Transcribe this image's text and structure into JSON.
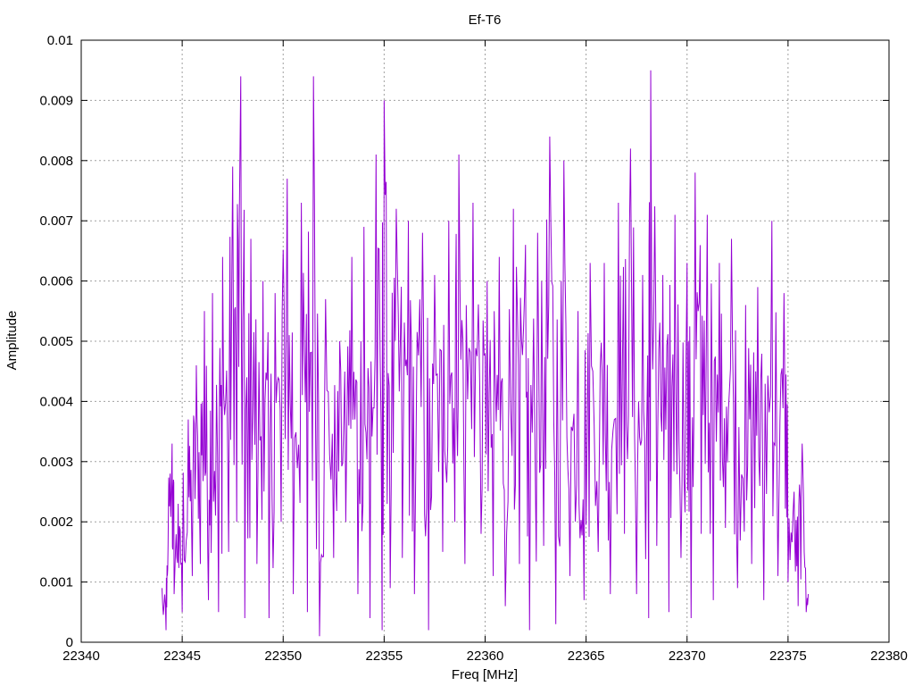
{
  "chart_data": {
    "type": "line",
    "title": "Ef-T6",
    "xlabel": "Freq [MHz]",
    "ylabel": "Amplitude",
    "xlim": [
      22340,
      22380
    ],
    "ylim": [
      0,
      0.01
    ],
    "x_ticks": [
      22340,
      22345,
      22350,
      22355,
      22360,
      22365,
      22370,
      22375,
      22380
    ],
    "x_tick_labels": [
      "22340",
      "22345",
      "22350",
      "22355",
      "22360",
      "22365",
      "22370",
      "22375",
      "22380"
    ],
    "y_ticks": [
      0,
      0.001,
      0.002,
      0.003,
      0.004,
      0.005,
      0.006,
      0.007,
      0.008,
      0.009,
      0.01
    ],
    "y_tick_labels": [
      "0",
      "0.001",
      "0.002",
      "0.003",
      "0.004",
      "0.005",
      "0.006",
      "0.007",
      "0.008",
      "0.009",
      "0.01"
    ],
    "grid": true,
    "legend": "none",
    "series": [
      {
        "color": "#9400d3",
        "x_start": 22344.0,
        "x_end": 22376.0,
        "peaks": [
          [
            22344.0,
            0.0009
          ],
          [
            22344.2,
            0.0002
          ],
          [
            22344.3,
            0.0016
          ],
          [
            22344.5,
            0.0033
          ],
          [
            22344.6,
            0.0008
          ],
          [
            22344.8,
            0.0023
          ],
          [
            22345.0,
            0.0005
          ],
          [
            22345.3,
            0.0037
          ],
          [
            22345.5,
            0.0011
          ],
          [
            22345.7,
            0.0046
          ],
          [
            22345.9,
            0.0013
          ],
          [
            22346.1,
            0.0055
          ],
          [
            22346.3,
            0.0007
          ],
          [
            22346.5,
            0.0058
          ],
          [
            22346.8,
            0.0005
          ],
          [
            22347.0,
            0.0064
          ],
          [
            22347.3,
            0.0015
          ],
          [
            22347.5,
            0.0079
          ],
          [
            22347.7,
            0.002
          ],
          [
            22347.9,
            0.0094
          ],
          [
            22348.1,
            0.0004
          ],
          [
            22348.4,
            0.0067
          ],
          [
            22348.7,
            0.0013
          ],
          [
            22349.0,
            0.006
          ],
          [
            22349.3,
            0.0004
          ],
          [
            22349.6,
            0.0058
          ],
          [
            22349.9,
            0.002
          ],
          [
            22350.2,
            0.0077
          ],
          [
            22350.5,
            0.0008
          ],
          [
            22350.9,
            0.0073
          ],
          [
            22351.2,
            0.0005
          ],
          [
            22351.5,
            0.0094
          ],
          [
            22351.8,
            0.0001
          ],
          [
            22352.1,
            0.0057
          ],
          [
            22352.5,
            0.0014
          ],
          [
            22352.8,
            0.005
          ],
          [
            22353.1,
            0.002
          ],
          [
            22353.4,
            0.0064
          ],
          [
            22353.7,
            0.0008
          ],
          [
            22354.0,
            0.0069
          ],
          [
            22354.3,
            0.0004
          ],
          [
            22354.6,
            0.0081
          ],
          [
            22354.9,
            0.0002
          ],
          [
            22355.0,
            0.009
          ],
          [
            22355.3,
            0.0009
          ],
          [
            22355.6,
            0.0072
          ],
          [
            22355.9,
            0.0014
          ],
          [
            22356.2,
            0.007
          ],
          [
            22356.5,
            0.0008
          ],
          [
            22356.9,
            0.0068
          ],
          [
            22357.2,
            0.0002
          ],
          [
            22357.5,
            0.0061
          ],
          [
            22357.9,
            0.0015
          ],
          [
            22358.2,
            0.007
          ],
          [
            22358.5,
            0.002
          ],
          [
            22358.7,
            0.0081
          ],
          [
            22359.0,
            0.0013
          ],
          [
            22359.4,
            0.0073
          ],
          [
            22359.8,
            0.0018
          ],
          [
            22360.1,
            0.006
          ],
          [
            22360.4,
            0.0011
          ],
          [
            22360.7,
            0.0064
          ],
          [
            22361.0,
            0.0006
          ],
          [
            22361.4,
            0.0072
          ],
          [
            22361.7,
            0.0013
          ],
          [
            22362.0,
            0.0066
          ],
          [
            22362.2,
            0.0002
          ],
          [
            22362.6,
            0.0068
          ],
          [
            22362.9,
            0.0016
          ],
          [
            22363.2,
            0.0084
          ],
          [
            22363.5,
            0.0003
          ],
          [
            22363.9,
            0.008
          ],
          [
            22364.2,
            0.0011
          ],
          [
            22364.6,
            0.0055
          ],
          [
            22364.9,
            0.0007
          ],
          [
            22365.2,
            0.0063
          ],
          [
            22365.6,
            0.0015
          ],
          [
            22365.9,
            0.0063
          ],
          [
            22366.2,
            0.0008
          ],
          [
            22366.6,
            0.0073
          ],
          [
            22366.9,
            0.0018
          ],
          [
            22367.2,
            0.0082
          ],
          [
            22367.5,
            0.0008
          ],
          [
            22367.8,
            0.0061
          ],
          [
            22368.1,
            0.0004
          ],
          [
            22368.2,
            0.0095
          ],
          [
            22368.5,
            0.0016
          ],
          [
            22368.8,
            0.0061
          ],
          [
            22369.1,
            0.0005
          ],
          [
            22369.4,
            0.0071
          ],
          [
            22369.7,
            0.0014
          ],
          [
            22370.0,
            0.0063
          ],
          [
            22370.2,
            0.0004
          ],
          [
            22370.4,
            0.0078
          ],
          [
            22370.7,
            0.0018
          ],
          [
            22371.0,
            0.0071
          ],
          [
            22371.3,
            0.0007
          ],
          [
            22371.6,
            0.0063
          ],
          [
            22371.9,
            0.0019
          ],
          [
            22372.2,
            0.0067
          ],
          [
            22372.5,
            0.0009
          ],
          [
            22372.9,
            0.0056
          ],
          [
            22373.2,
            0.0013
          ],
          [
            22373.5,
            0.0059
          ],
          [
            22373.8,
            0.0007
          ],
          [
            22374.2,
            0.007
          ],
          [
            22374.5,
            0.0011
          ],
          [
            22374.8,
            0.0058
          ],
          [
            22375.0,
            0.001
          ],
          [
            22375.3,
            0.0025
          ],
          [
            22375.5,
            0.0006
          ],
          [
            22375.7,
            0.0033
          ],
          [
            22375.9,
            0.0005
          ],
          [
            22376.0,
            0.0008
          ]
        ]
      }
    ]
  }
}
